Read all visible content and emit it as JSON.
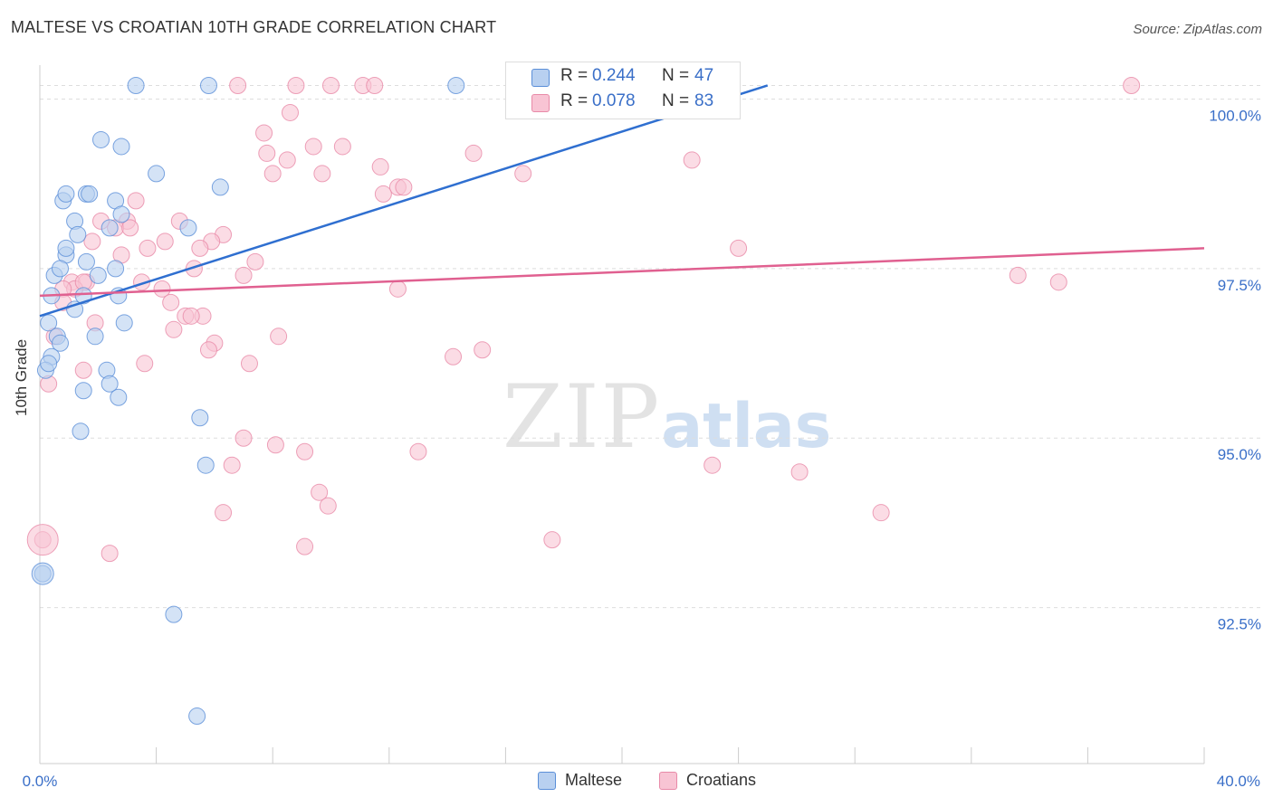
{
  "title": "MALTESE VS CROATIAN 10TH GRADE CORRELATION CHART",
  "source": "Source: ZipAtlas.com",
  "watermark": {
    "zip": "ZIP",
    "atlas": "atlas"
  },
  "colors": {
    "maltese_fill": "#b8d0f0",
    "maltese_stroke": "#5b8fd8",
    "maltese_line": "#2f6fd0",
    "croatian_fill": "#f8c4d4",
    "croatian_stroke": "#e88aa8",
    "croatian_line": "#e06090",
    "tick_label": "#3a6fc8",
    "grid": "#dddddd"
  },
  "stats": {
    "maltese": {
      "r_label": "R = ",
      "r": "0.244",
      "n_label": "N = ",
      "n": "47"
    },
    "croatian": {
      "r_label": "R = ",
      "r": "0.078",
      "n_label": "N = ",
      "n": "83"
    }
  },
  "legend": {
    "maltese": "Maltese",
    "croatians": "Croatians"
  },
  "chart_data": {
    "type": "scatter",
    "title": "MALTESE VS CROATIAN 10TH GRADE CORRELATION CHART",
    "xlabel": "",
    "ylabel": "10th Grade",
    "xlim": [
      0,
      40
    ],
    "ylim": [
      90.2,
      100.5
    ],
    "x_tick_labels": [
      "0.0%",
      "40.0%"
    ],
    "y_ticks": [
      92.5,
      95.0,
      97.5,
      100.0
    ],
    "y_tick_labels": [
      "92.5%",
      "95.0%",
      "97.5%",
      "100.0%"
    ],
    "grid": "horizontal dashed",
    "legend_position": "bottom",
    "series": [
      {
        "name": "Maltese",
        "trend": {
          "x": [
            0,
            25
          ],
          "y": [
            96.8,
            100.2
          ]
        },
        "points": [
          {
            "x": 3.3,
            "y": 100.2
          },
          {
            "x": 5.8,
            "y": 100.2
          },
          {
            "x": 14.3,
            "y": 100.2
          },
          {
            "x": 2.1,
            "y": 99.4
          },
          {
            "x": 2.8,
            "y": 99.3
          },
          {
            "x": 4.0,
            "y": 98.9
          },
          {
            "x": 6.2,
            "y": 98.7
          },
          {
            "x": 0.8,
            "y": 98.5
          },
          {
            "x": 0.9,
            "y": 98.6
          },
          {
            "x": 1.6,
            "y": 98.6
          },
          {
            "x": 1.7,
            "y": 98.6
          },
          {
            "x": 2.6,
            "y": 98.5
          },
          {
            "x": 2.8,
            "y": 98.3
          },
          {
            "x": 1.2,
            "y": 98.2
          },
          {
            "x": 5.1,
            "y": 98.1
          },
          {
            "x": 1.3,
            "y": 98.0
          },
          {
            "x": 2.4,
            "y": 98.1
          },
          {
            "x": 0.9,
            "y": 97.7
          },
          {
            "x": 1.6,
            "y": 97.6
          },
          {
            "x": 0.5,
            "y": 97.4
          },
          {
            "x": 0.7,
            "y": 97.5
          },
          {
            "x": 2.6,
            "y": 97.5
          },
          {
            "x": 2.0,
            "y": 97.4
          },
          {
            "x": 0.4,
            "y": 97.1
          },
          {
            "x": 1.5,
            "y": 97.1
          },
          {
            "x": 2.7,
            "y": 97.1
          },
          {
            "x": 1.2,
            "y": 96.9
          },
          {
            "x": 0.3,
            "y": 96.7
          },
          {
            "x": 2.9,
            "y": 96.7
          },
          {
            "x": 0.6,
            "y": 96.5
          },
          {
            "x": 0.7,
            "y": 96.4
          },
          {
            "x": 1.9,
            "y": 96.5
          },
          {
            "x": 0.4,
            "y": 96.2
          },
          {
            "x": 0.2,
            "y": 96.0
          },
          {
            "x": 0.3,
            "y": 96.1
          },
          {
            "x": 2.3,
            "y": 96.0
          },
          {
            "x": 2.4,
            "y": 95.8
          },
          {
            "x": 1.5,
            "y": 95.7
          },
          {
            "x": 2.7,
            "y": 95.6
          },
          {
            "x": 5.5,
            "y": 95.3
          },
          {
            "x": 1.4,
            "y": 95.1
          },
          {
            "x": 5.7,
            "y": 94.6
          },
          {
            "x": 0.1,
            "y": 93.0
          },
          {
            "x": 4.6,
            "y": 92.4
          },
          {
            "x": 5.4,
            "y": 90.9
          },
          {
            "x": 21.8,
            "y": 100.2
          },
          {
            "x": 0.9,
            "y": 97.8
          }
        ]
      },
      {
        "name": "Croatians",
        "trend": {
          "x": [
            0,
            40
          ],
          "y": [
            97.1,
            97.8
          ]
        },
        "points": [
          {
            "x": 6.8,
            "y": 100.2
          },
          {
            "x": 8.8,
            "y": 100.2
          },
          {
            "x": 10.0,
            "y": 100.2
          },
          {
            "x": 11.1,
            "y": 100.2
          },
          {
            "x": 11.5,
            "y": 100.2
          },
          {
            "x": 22.2,
            "y": 100.2
          },
          {
            "x": 22.4,
            "y": 100.2
          },
          {
            "x": 37.5,
            "y": 100.2
          },
          {
            "x": 8.6,
            "y": 99.8
          },
          {
            "x": 7.7,
            "y": 99.5
          },
          {
            "x": 9.4,
            "y": 99.3
          },
          {
            "x": 7.8,
            "y": 99.2
          },
          {
            "x": 8.5,
            "y": 99.1
          },
          {
            "x": 14.9,
            "y": 99.2
          },
          {
            "x": 11.7,
            "y": 99.0
          },
          {
            "x": 22.4,
            "y": 99.1
          },
          {
            "x": 8.0,
            "y": 98.9
          },
          {
            "x": 9.7,
            "y": 98.9
          },
          {
            "x": 16.6,
            "y": 98.9
          },
          {
            "x": 12.3,
            "y": 98.7
          },
          {
            "x": 12.5,
            "y": 98.7
          },
          {
            "x": 11.8,
            "y": 98.6
          },
          {
            "x": 3.3,
            "y": 98.5
          },
          {
            "x": 2.1,
            "y": 98.2
          },
          {
            "x": 3.0,
            "y": 98.2
          },
          {
            "x": 4.8,
            "y": 98.2
          },
          {
            "x": 2.6,
            "y": 98.1
          },
          {
            "x": 3.1,
            "y": 98.1
          },
          {
            "x": 6.3,
            "y": 98.0
          },
          {
            "x": 1.8,
            "y": 97.9
          },
          {
            "x": 4.3,
            "y": 97.9
          },
          {
            "x": 5.9,
            "y": 97.9
          },
          {
            "x": 3.7,
            "y": 97.8
          },
          {
            "x": 5.5,
            "y": 97.8
          },
          {
            "x": 24.0,
            "y": 97.8
          },
          {
            "x": 2.8,
            "y": 97.7
          },
          {
            "x": 7.4,
            "y": 97.6
          },
          {
            "x": 5.3,
            "y": 97.5
          },
          {
            "x": 7.0,
            "y": 97.4
          },
          {
            "x": 33.6,
            "y": 97.4
          },
          {
            "x": 35.0,
            "y": 97.3
          },
          {
            "x": 1.1,
            "y": 97.3
          },
          {
            "x": 1.6,
            "y": 97.3
          },
          {
            "x": 3.5,
            "y": 97.3
          },
          {
            "x": 4.2,
            "y": 97.2
          },
          {
            "x": 12.3,
            "y": 97.2
          },
          {
            "x": 1.2,
            "y": 97.2
          },
          {
            "x": 0.8,
            "y": 97.2
          },
          {
            "x": 4.5,
            "y": 97.0
          },
          {
            "x": 0.8,
            "y": 97.0
          },
          {
            "x": 5.0,
            "y": 96.8
          },
          {
            "x": 5.6,
            "y": 96.8
          },
          {
            "x": 5.2,
            "y": 96.8
          },
          {
            "x": 1.9,
            "y": 96.7
          },
          {
            "x": 4.6,
            "y": 96.6
          },
          {
            "x": 0.5,
            "y": 96.5
          },
          {
            "x": 6.0,
            "y": 96.4
          },
          {
            "x": 8.2,
            "y": 96.5
          },
          {
            "x": 15.2,
            "y": 96.3
          },
          {
            "x": 14.2,
            "y": 96.2
          },
          {
            "x": 5.8,
            "y": 96.3
          },
          {
            "x": 3.6,
            "y": 96.1
          },
          {
            "x": 7.2,
            "y": 96.1
          },
          {
            "x": 1.5,
            "y": 96.0
          },
          {
            "x": 0.3,
            "y": 95.8
          },
          {
            "x": 7.0,
            "y": 95.0
          },
          {
            "x": 8.1,
            "y": 94.9
          },
          {
            "x": 9.1,
            "y": 94.8
          },
          {
            "x": 13.0,
            "y": 94.8
          },
          {
            "x": 23.1,
            "y": 94.6
          },
          {
            "x": 26.1,
            "y": 94.5
          },
          {
            "x": 6.6,
            "y": 94.6
          },
          {
            "x": 9.6,
            "y": 94.2
          },
          {
            "x": 9.9,
            "y": 94.0
          },
          {
            "x": 6.3,
            "y": 93.9
          },
          {
            "x": 28.9,
            "y": 93.9
          },
          {
            "x": 17.6,
            "y": 93.5
          },
          {
            "x": 9.1,
            "y": 93.4
          },
          {
            "x": 2.4,
            "y": 93.3
          },
          {
            "x": 0.1,
            "y": 93.5
          },
          {
            "x": 23.3,
            "y": 100.2
          },
          {
            "x": 10.4,
            "y": 99.3
          },
          {
            "x": 1.5,
            "y": 97.3
          }
        ]
      }
    ]
  }
}
